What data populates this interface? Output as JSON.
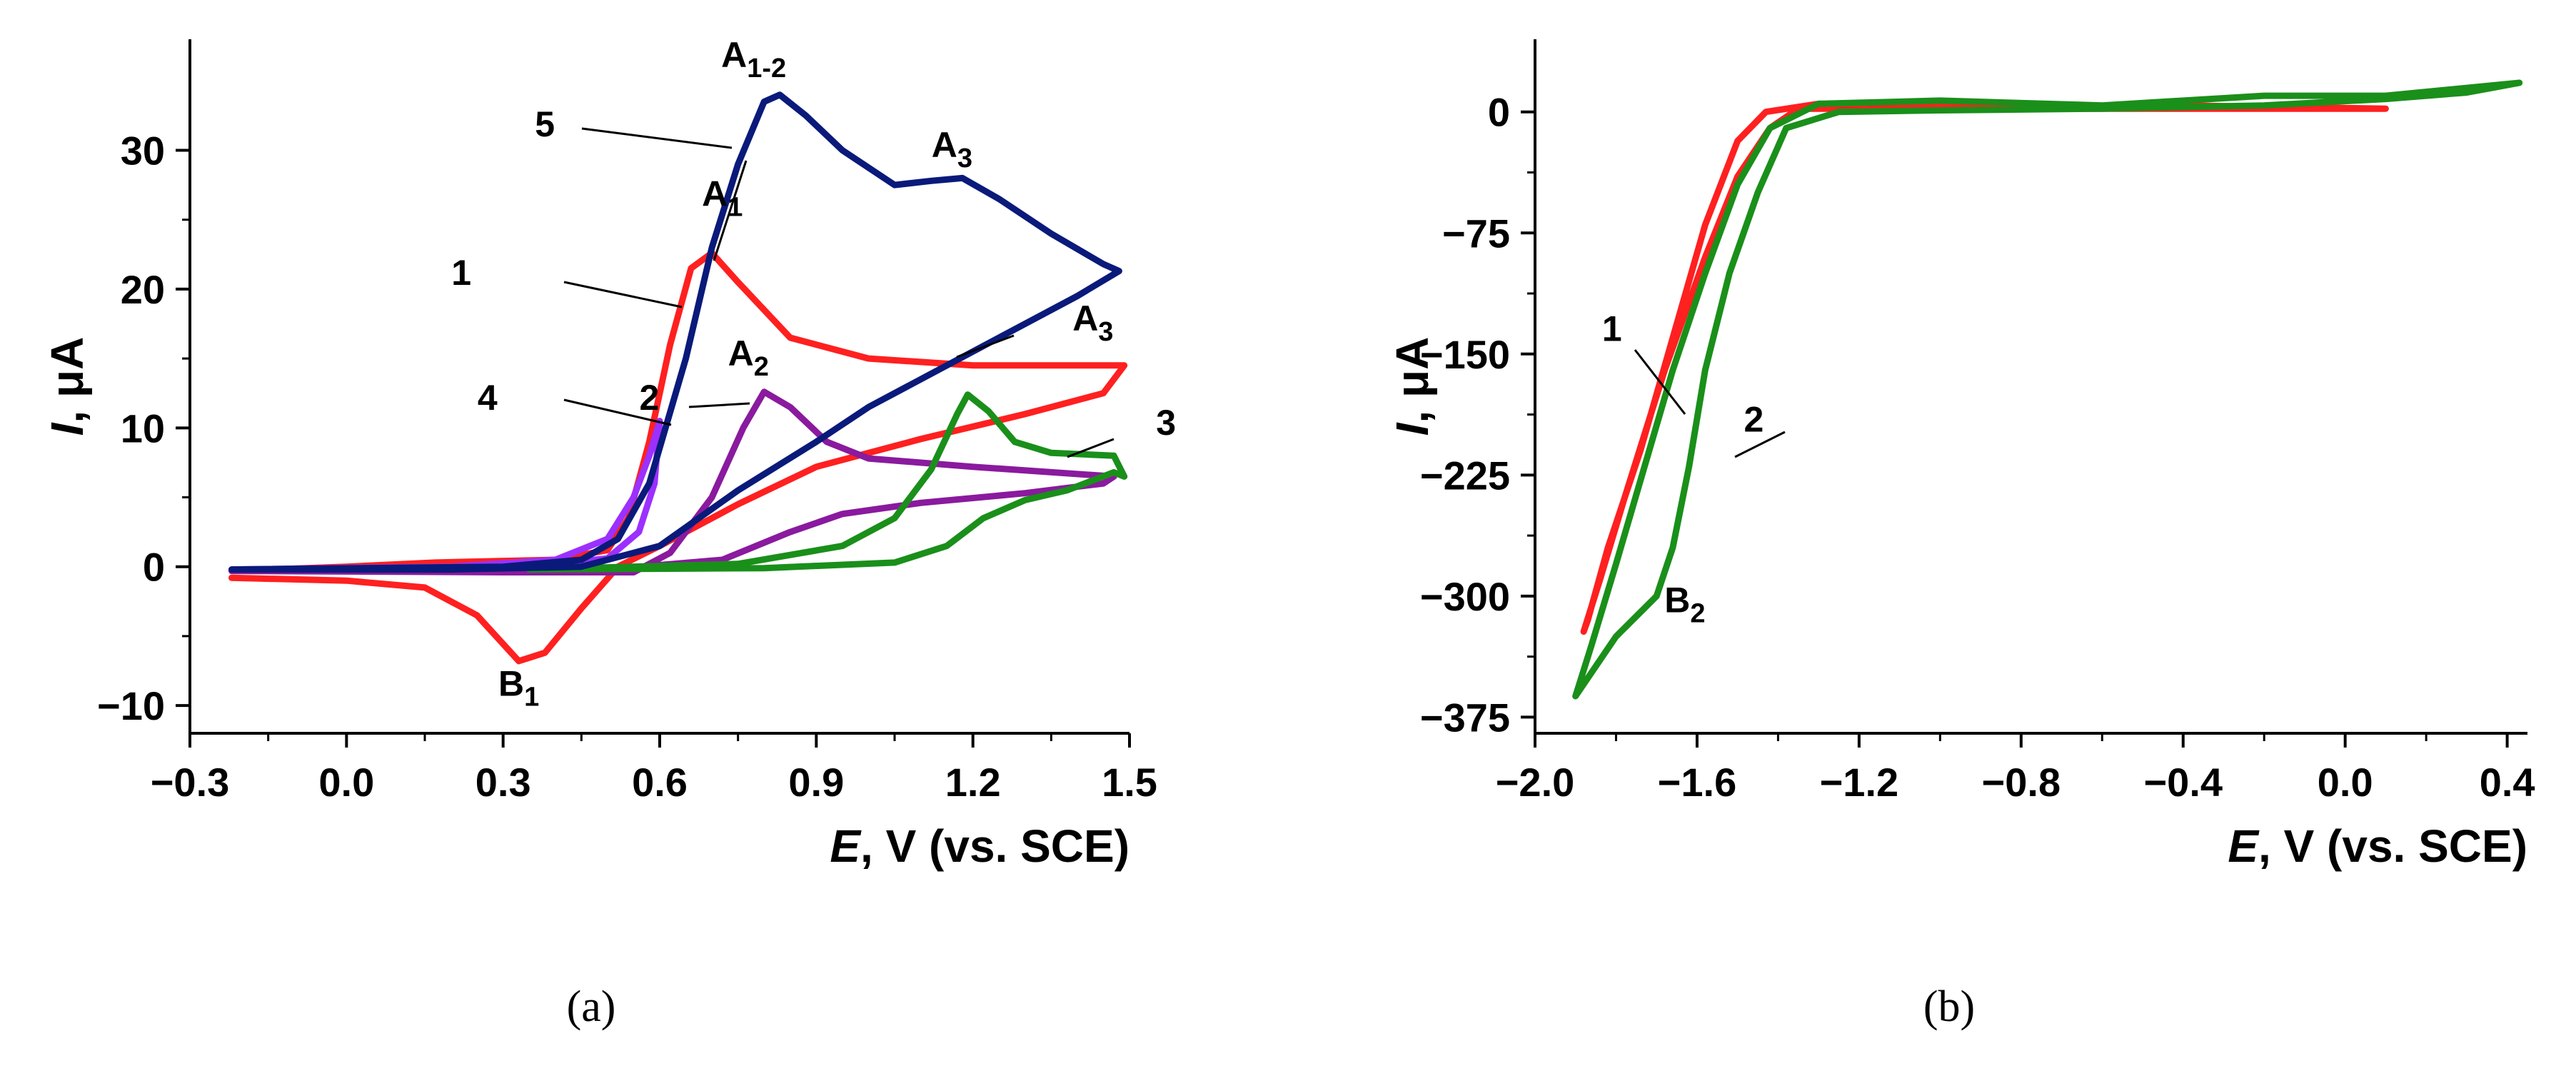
{
  "colors": {
    "red": "#ff2020",
    "violet": "#8a1a9e",
    "purple": "#9b30ff",
    "green": "#1a8f1a",
    "navy": "#0a1a7a"
  },
  "chart_data": [
    {
      "type": "line",
      "panel_label": "(a)",
      "xlabel_italic": "E",
      "xlabel_rest": ", V (vs. SCE)",
      "ylabel_italic": "I",
      "ylabel_rest": ", μA",
      "xlim": [
        -0.3,
        1.5
      ],
      "ylim": [
        -12,
        38
      ],
      "xticks": [
        -0.3,
        0.0,
        0.3,
        0.6,
        0.9,
        1.2,
        1.5
      ],
      "xtick_labels": [
        "−0.3",
        "0.0",
        "0.3",
        "0.6",
        "0.9",
        "1.2",
        "1.5"
      ],
      "yticks": [
        -10,
        0,
        10,
        20,
        30
      ],
      "ytick_labels": [
        "−10",
        "0",
        "10",
        "20",
        "30"
      ],
      "series": [
        {
          "name": "1",
          "color": "#ff2020",
          "points": [
            [
              -0.22,
              -0.8
            ],
            [
              0.0,
              -1.0
            ],
            [
              0.15,
              -1.5
            ],
            [
              0.25,
              -3.5
            ],
            [
              0.33,
              -6.8
            ],
            [
              0.38,
              -6.2
            ],
            [
              0.45,
              -3.0
            ],
            [
              0.52,
              0.0
            ],
            [
              0.6,
              1.5
            ],
            [
              0.75,
              4.5
            ],
            [
              0.9,
              7.2
            ],
            [
              1.1,
              9.2
            ],
            [
              1.3,
              11.0
            ],
            [
              1.45,
              12.5
            ],
            [
              1.49,
              14.5
            ],
            [
              1.4,
              14.5
            ],
            [
              1.2,
              14.5
            ],
            [
              1.0,
              15.0
            ],
            [
              0.85,
              16.5
            ],
            [
              0.75,
              20.5
            ],
            [
              0.7,
              22.6
            ],
            [
              0.66,
              21.5
            ],
            [
              0.62,
              16.0
            ],
            [
              0.58,
              9.0
            ],
            [
              0.54,
              3.5
            ],
            [
              0.5,
              1.2
            ],
            [
              0.4,
              0.5
            ],
            [
              0.17,
              0.3
            ],
            [
              0.0,
              0.0
            ],
            [
              -0.22,
              -0.3
            ]
          ]
        },
        {
          "name": "2",
          "color": "#8a1a9e",
          "points": [
            [
              -0.22,
              -0.3
            ],
            [
              0.3,
              -0.4
            ],
            [
              0.55,
              -0.4
            ],
            [
              0.62,
              1.0
            ],
            [
              0.7,
              5.0
            ],
            [
              0.76,
              10.0
            ],
            [
              0.8,
              12.6
            ],
            [
              0.85,
              11.5
            ],
            [
              0.92,
              9.0
            ],
            [
              1.0,
              7.8
            ],
            [
              1.2,
              7.2
            ],
            [
              1.47,
              6.5
            ],
            [
              1.45,
              6.0
            ],
            [
              1.3,
              5.3
            ],
            [
              1.1,
              4.6
            ],
            [
              0.95,
              3.8
            ],
            [
              0.85,
              2.5
            ],
            [
              0.72,
              0.5
            ],
            [
              0.5,
              -0.2
            ],
            [
              -0.22,
              -0.3
            ]
          ]
        },
        {
          "name": "3",
          "color": "#1a8f1a",
          "points": [
            [
              0.35,
              -0.2
            ],
            [
              0.75,
              0.2
            ],
            [
              0.95,
              1.5
            ],
            [
              1.05,
              3.5
            ],
            [
              1.12,
              7.0
            ],
            [
              1.17,
              11.0
            ],
            [
              1.19,
              12.4
            ],
            [
              1.23,
              11.2
            ],
            [
              1.28,
              9.0
            ],
            [
              1.35,
              8.2
            ],
            [
              1.47,
              8.0
            ],
            [
              1.49,
              6.5
            ],
            [
              1.47,
              6.8
            ],
            [
              1.38,
              5.5
            ],
            [
              1.3,
              4.8
            ],
            [
              1.22,
              3.5
            ],
            [
              1.15,
              1.5
            ],
            [
              1.05,
              0.3
            ],
            [
              0.8,
              -0.1
            ],
            [
              0.35,
              -0.2
            ]
          ]
        },
        {
          "name": "4",
          "color": "#9b30ff",
          "points": [
            [
              -0.22,
              -0.2
            ],
            [
              0.2,
              0.0
            ],
            [
              0.4,
              0.5
            ],
            [
              0.5,
              2.0
            ],
            [
              0.55,
              5.0
            ],
            [
              0.58,
              8.0
            ],
            [
              0.6,
              10.5
            ],
            [
              0.59,
              6.0
            ],
            [
              0.56,
              2.5
            ],
            [
              0.5,
              0.6
            ],
            [
              0.35,
              0.0
            ],
            [
              -0.22,
              -0.2
            ]
          ]
        },
        {
          "name": "5",
          "color": "#0a1a7a",
          "points": [
            [
              -0.22,
              -0.2
            ],
            [
              0.3,
              0.0
            ],
            [
              0.45,
              0.5
            ],
            [
              0.52,
              2.0
            ],
            [
              0.58,
              6.0
            ],
            [
              0.65,
              15.0
            ],
            [
              0.7,
              23.0
            ],
            [
              0.75,
              29.0
            ],
            [
              0.8,
              33.5
            ],
            [
              0.83,
              34.0
            ],
            [
              0.88,
              32.5
            ],
            [
              0.95,
              30.0
            ],
            [
              1.05,
              27.5
            ],
            [
              1.12,
              27.8
            ],
            [
              1.18,
              28.0
            ],
            [
              1.25,
              26.5
            ],
            [
              1.35,
              24.0
            ],
            [
              1.45,
              21.8
            ],
            [
              1.48,
              21.3
            ],
            [
              1.4,
              19.5
            ],
            [
              1.3,
              17.5
            ],
            [
              1.15,
              14.5
            ],
            [
              1.0,
              11.5
            ],
            [
              0.9,
              9.0
            ],
            [
              0.75,
              5.5
            ],
            [
              0.6,
              1.5
            ],
            [
              0.45,
              0.0
            ],
            [
              0.2,
              -0.2
            ],
            [
              -0.22,
              -0.2
            ]
          ]
        }
      ],
      "annotations": [
        {
          "text": "1",
          "x": 0.22,
          "y": 20.3
        },
        {
          "text": "2",
          "x": 0.58,
          "y": 11.3
        },
        {
          "text": "3",
          "x": 1.57,
          "y": 9.5
        },
        {
          "text": "4",
          "x": 0.27,
          "y": 11.3
        },
        {
          "text": "5",
          "x": 0.38,
          "y": 31.0
        },
        {
          "text": "B",
          "sub": "1",
          "x": 0.33,
          "y": -9.3
        },
        {
          "text": "A",
          "sub": "1-2",
          "x": 0.78,
          "y": 36.0
        },
        {
          "text": "A",
          "sub": "1",
          "x": 0.72,
          "y": 26.0
        },
        {
          "text": "A",
          "sub": "2",
          "x": 0.77,
          "y": 14.5
        },
        {
          "text": "A",
          "sub": "3",
          "x": 1.16,
          "y": 29.5
        },
        {
          "text": "A",
          "sub": "3",
          "x": 1.43,
          "y": 17.0
        }
      ]
    },
    {
      "type": "line",
      "panel_label": "(b)",
      "xlabel_italic": "E",
      "xlabel_rest": ", V (vs. SCE)",
      "ylabel_italic": "I",
      "ylabel_rest": ", μA",
      "xlim": [
        -2.0,
        0.45
      ],
      "ylim": [
        -385,
        45
      ],
      "xticks": [
        -2.0,
        -1.6,
        -1.2,
        -0.8,
        -0.4,
        0.0,
        0.4
      ],
      "xtick_labels": [
        "−2.0",
        "−1.6",
        "−1.2",
        "−0.8",
        "−0.4",
        "0.0",
        "0.4"
      ],
      "yticks": [
        -375,
        -300,
        -225,
        -150,
        -75,
        0
      ],
      "ytick_labels": [
        "−375",
        "−300",
        "−225",
        "−150",
        "−75",
        "0"
      ],
      "series": [
        {
          "name": "1",
          "color": "#ff2020",
          "points": [
            [
              0.1,
              2.0
            ],
            [
              -0.4,
              2.0
            ],
            [
              -0.8,
              2.0
            ],
            [
              -1.2,
              2.0
            ],
            [
              -1.35,
              2.0
            ],
            [
              -1.42,
              -10.0
            ],
            [
              -1.5,
              -40.0
            ],
            [
              -1.58,
              -90.0
            ],
            [
              -1.68,
              -160.0
            ],
            [
              -1.78,
              -240.0
            ],
            [
              -1.84,
              -290.0
            ],
            [
              -1.88,
              -322.0
            ],
            [
              -1.87,
              -315.0
            ],
            [
              -1.82,
              -270.0
            ],
            [
              -1.74,
              -210.0
            ],
            [
              -1.66,
              -140.0
            ],
            [
              -1.58,
              -70.0
            ],
            [
              -1.5,
              -18.0
            ],
            [
              -1.43,
              0.0
            ],
            [
              -1.3,
              5.0
            ],
            [
              -1.0,
              3.0
            ],
            [
              -0.4,
              4.0
            ],
            [
              0.1,
              2.0
            ]
          ]
        },
        {
          "name": "2",
          "color": "#1a8f1a",
          "points": [
            [
              0.43,
              18.0
            ],
            [
              0.3,
              12.0
            ],
            [
              0.1,
              8.0
            ],
            [
              -0.2,
              4.0
            ],
            [
              -0.6,
              2.0
            ],
            [
              -1.0,
              1.0
            ],
            [
              -1.25,
              0.0
            ],
            [
              -1.38,
              -10.0
            ],
            [
              -1.45,
              -50.0
            ],
            [
              -1.52,
              -100.0
            ],
            [
              -1.58,
              -160.0
            ],
            [
              -1.62,
              -220.0
            ],
            [
              -1.66,
              -270.0
            ],
            [
              -1.7,
              -300.0
            ],
            [
              -1.8,
              -325.0
            ],
            [
              -1.9,
              -362.0
            ],
            [
              -1.86,
              -330.0
            ],
            [
              -1.8,
              -280.0
            ],
            [
              -1.73,
              -220.0
            ],
            [
              -1.66,
              -160.0
            ],
            [
              -1.58,
              -100.0
            ],
            [
              -1.5,
              -45.0
            ],
            [
              -1.42,
              -10.0
            ],
            [
              -1.3,
              5.0
            ],
            [
              -1.0,
              7.0
            ],
            [
              -0.6,
              4.0
            ],
            [
              -0.2,
              10.0
            ],
            [
              0.1,
              10.0
            ],
            [
              0.43,
              18.0
            ]
          ]
        }
      ],
      "annotations": [
        {
          "text": "1",
          "x": -1.81,
          "y": -142.0
        },
        {
          "text": "2",
          "x": -1.46,
          "y": -198.0
        },
        {
          "text": "B",
          "sub": "2",
          "x": -1.63,
          "y": -310.0
        }
      ]
    }
  ]
}
